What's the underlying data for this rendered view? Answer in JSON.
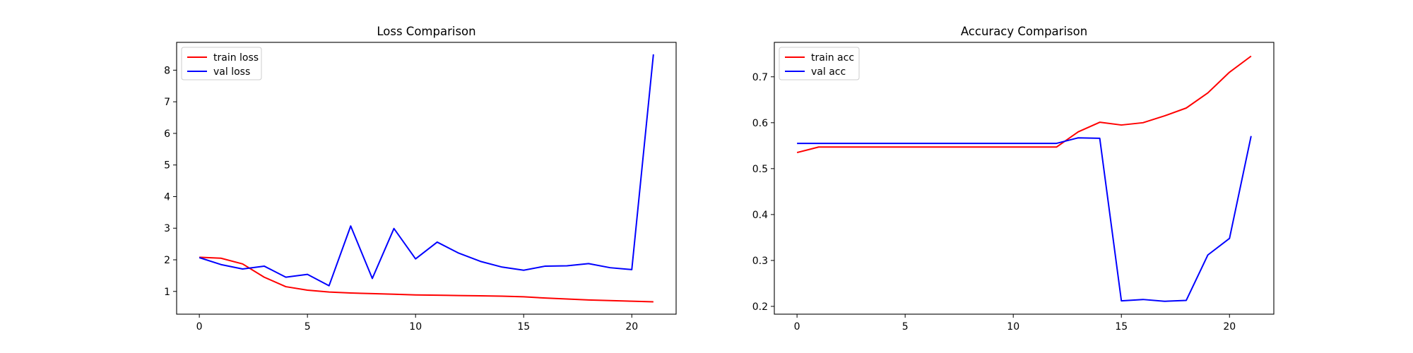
{
  "chart_data": [
    {
      "type": "line",
      "title": "Loss Comparison",
      "xlabel": "",
      "ylabel": "",
      "xlim": [
        -1.05,
        22.05
      ],
      "ylim": [
        0.28,
        8.88
      ],
      "xticks": [
        0,
        5,
        10,
        15,
        20
      ],
      "yticks": [
        1,
        2,
        3,
        4,
        5,
        6,
        7,
        8
      ],
      "grid": false,
      "legend": "upper left",
      "x": [
        0,
        1,
        2,
        3,
        4,
        5,
        6,
        7,
        8,
        9,
        10,
        11,
        12,
        13,
        14,
        15,
        16,
        17,
        18,
        19,
        20,
        21
      ],
      "series": [
        {
          "name": "train loss",
          "color": "#ff0000",
          "values": [
            2.08,
            2.05,
            1.87,
            1.45,
            1.15,
            1.04,
            0.98,
            0.95,
            0.93,
            0.91,
            0.89,
            0.88,
            0.87,
            0.86,
            0.85,
            0.83,
            0.79,
            0.76,
            0.73,
            0.71,
            0.69,
            0.67
          ]
        },
        {
          "name": "val loss",
          "color": "#0000ff",
          "values": [
            2.07,
            1.85,
            1.71,
            1.8,
            1.45,
            1.54,
            1.18,
            3.07,
            1.41,
            2.99,
            2.03,
            2.56,
            2.21,
            1.95,
            1.77,
            1.67,
            1.8,
            1.81,
            1.88,
            1.75,
            1.69,
            8.5
          ]
        }
      ]
    },
    {
      "type": "line",
      "title": "Accuracy Comparison",
      "xlabel": "",
      "ylabel": "",
      "xlim": [
        -1.05,
        22.05
      ],
      "ylim": [
        0.183,
        0.775
      ],
      "xticks": [
        0,
        5,
        10,
        15,
        20
      ],
      "yticks": [
        0.2,
        0.3,
        0.4,
        0.5,
        0.6,
        0.7
      ],
      "grid": false,
      "legend": "upper left",
      "x": [
        0,
        1,
        2,
        3,
        4,
        5,
        6,
        7,
        8,
        9,
        10,
        11,
        12,
        13,
        14,
        15,
        16,
        17,
        18,
        19,
        20,
        21
      ],
      "series": [
        {
          "name": "train acc",
          "color": "#ff0000",
          "values": [
            0.535,
            0.547,
            0.547,
            0.547,
            0.547,
            0.547,
            0.547,
            0.547,
            0.547,
            0.547,
            0.547,
            0.547,
            0.547,
            0.58,
            0.601,
            0.595,
            0.6,
            0.615,
            0.632,
            0.665,
            0.71,
            0.745
          ]
        },
        {
          "name": "val acc",
          "color": "#0000ff",
          "values": [
            0.555,
            0.555,
            0.555,
            0.555,
            0.555,
            0.555,
            0.555,
            0.555,
            0.555,
            0.555,
            0.555,
            0.555,
            0.555,
            0.567,
            0.566,
            0.212,
            0.215,
            0.211,
            0.213,
            0.312,
            0.348,
            0.571
          ]
        }
      ]
    }
  ]
}
